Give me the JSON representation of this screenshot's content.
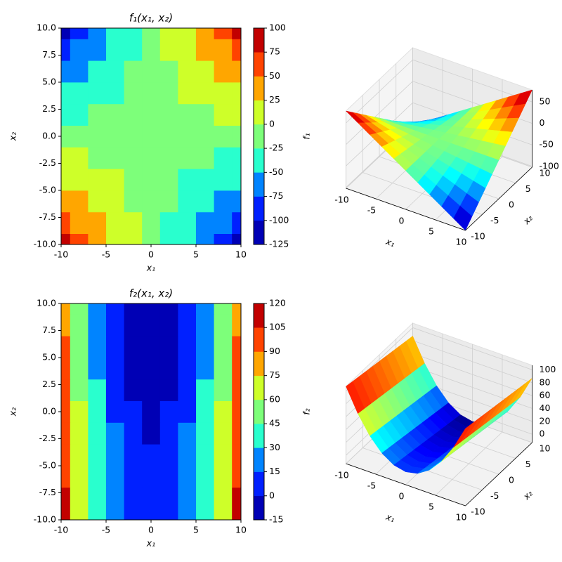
{
  "chart_data": [
    {
      "type": "contour",
      "title": "f₁(x₁, x₂)",
      "xlabel": "x₁",
      "ylabel": "x₂",
      "colorbar_label": "f₁",
      "x": [
        -10,
        -8,
        -6,
        -4,
        -2,
        0,
        2,
        4,
        6,
        8,
        10
      ],
      "y": [
        -10,
        -8,
        -6,
        -4,
        -2,
        0,
        2,
        4,
        6,
        8,
        10
      ],
      "z": [
        [
          78,
          60,
          42,
          24,
          6,
          -12,
          -30,
          -48,
          -66,
          -84,
          -102
        ],
        [
          60,
          45.6,
          31.2,
          16.8,
          2.4,
          -12,
          -26.4,
          -40.8,
          -55.2,
          -69.6,
          -84
        ],
        [
          42,
          31.2,
          20.4,
          9.6,
          -1.2,
          -12,
          -22.8,
          -33.6,
          -44.4,
          -55.2,
          -66
        ],
        [
          24,
          16.8,
          9.6,
          2.4,
          -4.8,
          -12,
          -19.2,
          -26.4,
          -33.6,
          -40.8,
          -48
        ],
        [
          6,
          2.4,
          -1.2,
          -4.8,
          -8.4,
          -12,
          -15.6,
          -19.2,
          -22.8,
          -26.4,
          -30
        ],
        [
          -12,
          -12,
          -12,
          -12,
          -12,
          -12,
          -12,
          -12,
          -12,
          -12,
          -12
        ],
        [
          -30,
          -26.4,
          -22.8,
          -19.2,
          -15.6,
          -12,
          -8.4,
          -4.8,
          -1.2,
          2.4,
          6
        ],
        [
          -48,
          -40.8,
          -33.6,
          -26.4,
          -19.2,
          -12,
          -4.8,
          2.4,
          9.6,
          16.8,
          24
        ],
        [
          -66,
          -55.2,
          -44.4,
          -33.6,
          -22.8,
          -12,
          -1.2,
          9.6,
          20.4,
          31.2,
          42
        ],
        [
          -84,
          -69.6,
          -55.2,
          -40.8,
          -26.4,
          -12,
          2.4,
          16.8,
          31.2,
          45.6,
          60
        ],
        [
          -102,
          -84,
          -66,
          -48,
          -30,
          -12,
          6,
          24,
          42,
          60,
          78
        ]
      ],
      "levels": [
        -125,
        -100,
        -75,
        -50,
        -25,
        0,
        25,
        50,
        75,
        100
      ],
      "colors": [
        "#0000b5",
        "#0020ff",
        "#0084ff",
        "#29ffce",
        "#7dff7a",
        "#ceff29",
        "#ffa600",
        "#ff4300",
        "#c20000"
      ],
      "xlim": [
        -10,
        10
      ],
      "ylim": [
        -10,
        10
      ],
      "xticks": [
        -10,
        -5,
        0,
        5,
        10
      ],
      "yticks": [
        {
          "value": -10,
          "label": "-10.0"
        },
        -7.5,
        {
          "value": -5,
          "label": "-5.0"
        },
        -2.5,
        {
          "value": 0,
          "label": "0.0"
        },
        2.5,
        {
          "value": 5,
          "label": "5.0"
        },
        7.5,
        {
          "value": 10,
          "label": "10.0"
        }
      ]
    },
    {
      "type": "surface",
      "xlabel": "x₁",
      "ylabel": "x₂",
      "colormap": "jet",
      "x": [
        -10,
        -8,
        -6,
        -4,
        -2,
        0,
        2,
        4,
        6,
        8,
        10
      ],
      "y": [
        -10,
        -8,
        -6,
        -4,
        -2,
        0,
        2,
        4,
        6,
        8,
        10
      ],
      "z": [
        [
          78,
          60,
          42,
          24,
          6,
          -12,
          -30,
          -48,
          -66,
          -84,
          -102
        ],
        [
          60,
          45.6,
          31.2,
          16.8,
          2.4,
          -12,
          -26.4,
          -40.8,
          -55.2,
          -69.6,
          -84
        ],
        [
          42,
          31.2,
          20.4,
          9.6,
          -1.2,
          -12,
          -22.8,
          -33.6,
          -44.4,
          -55.2,
          -66
        ],
        [
          24,
          16.8,
          9.6,
          2.4,
          -4.8,
          -12,
          -19.2,
          -26.4,
          -33.6,
          -40.8,
          -48
        ],
        [
          6,
          2.4,
          -1.2,
          -4.8,
          -8.4,
          -12,
          -15.6,
          -19.2,
          -22.8,
          -26.4,
          -30
        ],
        [
          -12,
          -12,
          -12,
          -12,
          -12,
          -12,
          -12,
          -12,
          -12,
          -12,
          -12
        ],
        [
          -30,
          -26.4,
          -22.8,
          -19.2,
          -15.6,
          -12,
          -8.4,
          -4.8,
          -1.2,
          2.4,
          6
        ],
        [
          -48,
          -40.8,
          -33.6,
          -26.4,
          -19.2,
          -12,
          -4.8,
          2.4,
          9.6,
          16.8,
          24
        ],
        [
          -66,
          -55.2,
          -44.4,
          -33.6,
          -22.8,
          -12,
          -1.2,
          9.6,
          20.4,
          31.2,
          42
        ],
        [
          -84,
          -69.6,
          -55.2,
          -40.8,
          -26.4,
          -12,
          2.4,
          16.8,
          31.2,
          45.6,
          60
        ],
        [
          -102,
          -84,
          -66,
          -48,
          -30,
          -12,
          6,
          24,
          42,
          60,
          78
        ]
      ],
      "xlim": [
        -10,
        10
      ],
      "ylim": [
        -10,
        10
      ],
      "zlim": [
        -102,
        78
      ],
      "xticks": [
        -10,
        -5,
        0,
        5,
        10
      ],
      "yticks": [
        -10,
        -5,
        0,
        5,
        10
      ],
      "zticks": [
        -100,
        -50,
        0,
        50
      ]
    },
    {
      "type": "contour",
      "title": "f₂(x₁, x₂)",
      "xlabel": "x₁",
      "ylabel": "x₂",
      "colorbar_label": "f₂",
      "x": [
        -10,
        -8,
        -6,
        -4,
        -2,
        0,
        2,
        4,
        6,
        8,
        10
      ],
      "y": [
        -10,
        -8,
        -6,
        -4,
        -2,
        0,
        2,
        4,
        6,
        8,
        10
      ],
      "z": [
        [
          107,
          71,
          43,
          23,
          11,
          7,
          11,
          23,
          43,
          71,
          107
        ],
        [
          105,
          69,
          41,
          21,
          9,
          5,
          9,
          21,
          41,
          69,
          105
        ],
        [
          103,
          67,
          39,
          19,
          7,
          3,
          7,
          19,
          39,
          67,
          103
        ],
        [
          101,
          65,
          37,
          17,
          5,
          1,
          5,
          17,
          37,
          65,
          101
        ],
        [
          99,
          63,
          35,
          15,
          3,
          -1,
          3,
          15,
          35,
          63,
          99
        ],
        [
          97,
          61,
          33,
          13,
          1,
          -3,
          1,
          13,
          33,
          61,
          97
        ],
        [
          95,
          59,
          31,
          11,
          -1,
          -5,
          -1,
          11,
          31,
          59,
          95
        ],
        [
          93,
          57,
          29,
          9,
          -3,
          -7,
          -3,
          9,
          29,
          57,
          93
        ],
        [
          91,
          55,
          27,
          7,
          -5,
          -9,
          -5,
          7,
          27,
          55,
          91
        ],
        [
          89,
          53,
          25,
          5,
          -7,
          -11,
          -7,
          5,
          25,
          53,
          89
        ],
        [
          87,
          51,
          23,
          3,
          -9,
          -13,
          -9,
          3,
          23,
          51,
          87
        ]
      ],
      "levels": [
        -15,
        0,
        15,
        30,
        45,
        60,
        75,
        90,
        105,
        120
      ],
      "colors": [
        "#0000b5",
        "#0020ff",
        "#0084ff",
        "#29ffce",
        "#7dff7a",
        "#ceff29",
        "#ffa600",
        "#ff4300",
        "#c20000"
      ],
      "xlim": [
        -10,
        10
      ],
      "ylim": [
        -10,
        10
      ],
      "xticks": [
        -10,
        -5,
        0,
        5,
        10
      ],
      "yticks": [
        {
          "value": -10,
          "label": "-10.0"
        },
        -7.5,
        {
          "value": -5,
          "label": "-5.0"
        },
        -2.5,
        {
          "value": 0,
          "label": "0.0"
        },
        2.5,
        {
          "value": 5,
          "label": "5.0"
        },
        7.5,
        {
          "value": 10,
          "label": "10.0"
        }
      ]
    },
    {
      "type": "surface",
      "xlabel": "x₁",
      "ylabel": "x₂",
      "colormap": "jet",
      "x": [
        -10,
        -8,
        -6,
        -4,
        -2,
        0,
        2,
        4,
        6,
        8,
        10
      ],
      "y": [
        -10,
        -8,
        -6,
        -4,
        -2,
        0,
        2,
        4,
        6,
        8,
        10
      ],
      "z": [
        [
          107,
          71,
          43,
          23,
          11,
          7,
          11,
          23,
          43,
          71,
          107
        ],
        [
          105,
          69,
          41,
          21,
          9,
          5,
          9,
          21,
          41,
          69,
          105
        ],
        [
          103,
          67,
          39,
          19,
          7,
          3,
          7,
          19,
          39,
          67,
          103
        ],
        [
          101,
          65,
          37,
          17,
          5,
          1,
          5,
          17,
          37,
          65,
          101
        ],
        [
          99,
          63,
          35,
          15,
          3,
          -1,
          3,
          15,
          35,
          63,
          99
        ],
        [
          97,
          61,
          33,
          13,
          1,
          -3,
          1,
          13,
          33,
          61,
          97
        ],
        [
          95,
          59,
          31,
          11,
          -1,
          -5,
          -1,
          11,
          31,
          59,
          95
        ],
        [
          93,
          57,
          29,
          9,
          -3,
          -7,
          -3,
          9,
          29,
          57,
          93
        ],
        [
          91,
          55,
          27,
          7,
          -5,
          -9,
          -5,
          7,
          27,
          55,
          91
        ],
        [
          89,
          53,
          25,
          5,
          -7,
          -11,
          -7,
          5,
          25,
          53,
          89
        ],
        [
          87,
          51,
          23,
          3,
          -9,
          -13,
          -9,
          3,
          23,
          51,
          87
        ]
      ],
      "xlim": [
        -10,
        10
      ],
      "ylim": [
        -10,
        10
      ],
      "zlim": [
        -13,
        107
      ],
      "xticks": [
        -10,
        -5,
        0,
        5,
        10
      ],
      "yticks": [
        -10,
        -5,
        0,
        5,
        10
      ],
      "zticks": [
        0,
        20,
        40,
        60,
        80,
        100
      ]
    }
  ]
}
